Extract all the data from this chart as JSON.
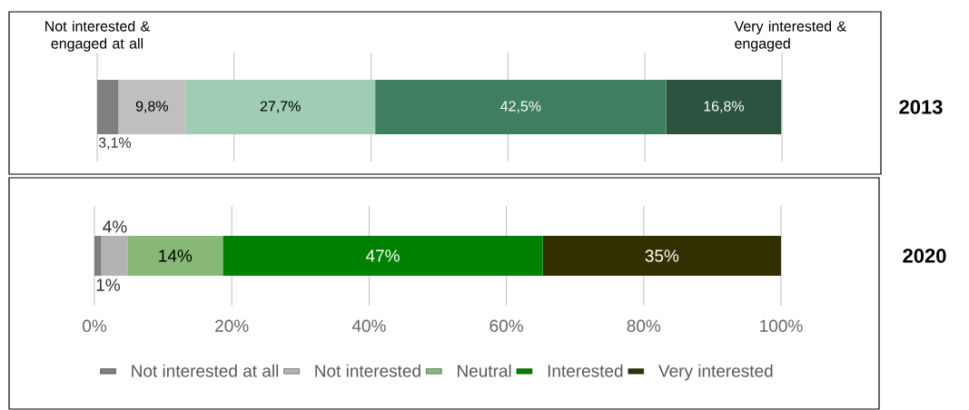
{
  "chart_data": [
    {
      "type": "bar",
      "orientation": "horizontal",
      "stacked": true,
      "categories": [
        "2013"
      ],
      "xlim": [
        0,
        100
      ],
      "xticks": [
        {
          "value": 0,
          "label": null
        },
        {
          "value": 20,
          "label": null
        },
        {
          "value": 40,
          "label": null
        },
        {
          "value": 60,
          "label": null
        },
        {
          "value": 80,
          "label": null
        },
        {
          "value": 100,
          "label": null
        }
      ],
      "grid": "x",
      "tick_labels": "y",
      "annotations": [
        "Not interested & engaged at all",
        "Very interested & engaged"
      ],
      "series": [
        {
          "color": "#7f7f7f",
          "values": [
            3.1
          ],
          "value_labels": [
            "3,1%"
          ]
        },
        {
          "color": "#bfbfbf",
          "values": [
            9.8
          ],
          "value_labels": [
            "9,8%"
          ]
        },
        {
          "color": "#9fcdb4",
          "values": [
            27.7
          ],
          "value_labels": [
            "27,7%"
          ]
        },
        {
          "color": "#3f7f5f",
          "values": [
            42.5
          ],
          "value_labels": [
            "42,5%"
          ]
        },
        {
          "color": "#2b533f",
          "values": [
            16.8
          ],
          "value_labels": [
            "16,8%"
          ]
        }
      ]
    },
    {
      "type": "bar",
      "orientation": "horizontal",
      "stacked": true,
      "categories": [
        "2020"
      ],
      "xlim": [
        0,
        100
      ],
      "xticks": [
        {
          "value": 0,
          "label": "0%"
        },
        {
          "value": 20,
          "label": "20%"
        },
        {
          "value": 40,
          "label": "40%"
        },
        {
          "value": 60,
          "label": "60%"
        },
        {
          "value": 80,
          "label": "80%"
        },
        {
          "value": 100,
          "label": "100%"
        }
      ],
      "grid": "x",
      "legend": "bottom",
      "series": [
        {
          "name": "Not interested at all",
          "color": "#7f7f7f",
          "values": [
            1.0
          ],
          "value_labels": [
            "1%"
          ]
        },
        {
          "name": "Not interested",
          "color": "#b3b3b3",
          "values": [
            3.8
          ],
          "value_labels": [
            "4%"
          ]
        },
        {
          "name": "Neutral",
          "color": "#87b878",
          "values": [
            13.9
          ],
          "value_labels": [
            "14%"
          ]
        },
        {
          "name": "Interested",
          "color": "#008000",
          "values": [
            46.6
          ],
          "value_labels": [
            "47%"
          ]
        },
        {
          "name": "Very interested",
          "color": "#333000",
          "values": [
            34.7
          ],
          "value_labels": [
            "35%"
          ]
        }
      ]
    }
  ]
}
